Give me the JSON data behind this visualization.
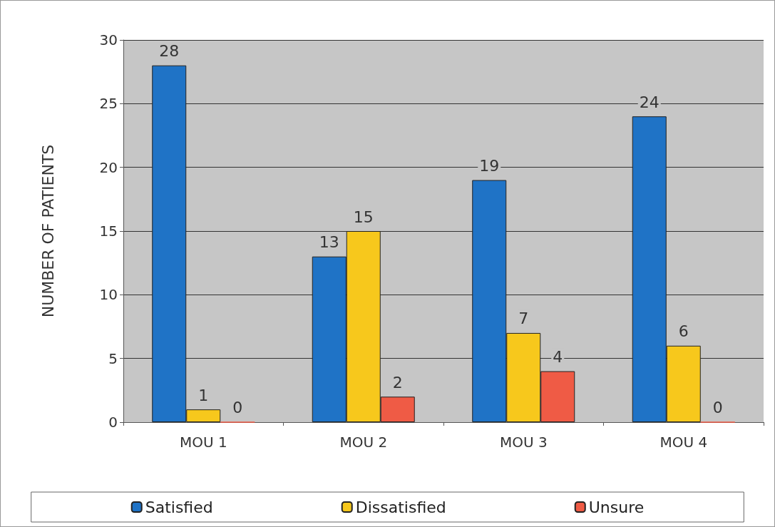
{
  "chart_data": {
    "type": "bar",
    "ylabel": "NUMBER OF PATIENTS",
    "categories": [
      "MOU 1",
      "MOU 2",
      "MOU 3",
      "MOU 4"
    ],
    "series": [
      {
        "name": "Satisfied",
        "color": "#1f73c6",
        "values": [
          28,
          13,
          19,
          24
        ]
      },
      {
        "name": "Dissatisfied",
        "color": "#f7c81c",
        "values": [
          1,
          15,
          7,
          6
        ]
      },
      {
        "name": "Unsure",
        "color": "#ef5b45",
        "values": [
          0,
          2,
          4,
          0
        ]
      }
    ],
    "ylim": [
      0,
      30
    ],
    "yticks": [
      0,
      5,
      10,
      15,
      20,
      25,
      30
    ],
    "grid": "y",
    "legend": "bottom",
    "data_labels": true
  }
}
